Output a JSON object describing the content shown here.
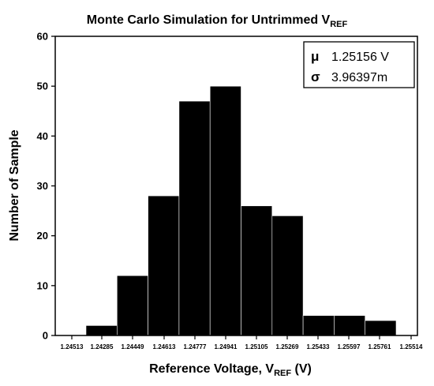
{
  "chart_data": {
    "type": "bar",
    "title": {
      "main": "Monte Carlo Simulation for Untrimmed V",
      "sub": "REF"
    },
    "xlabel": {
      "main": "Reference Voltage, V",
      "sub": "REF",
      "suffix": " (V)"
    },
    "ylabel": "Number of Sample",
    "ylim": [
      0,
      60
    ],
    "yticks": [
      "0",
      "10",
      "20",
      "30",
      "40",
      "50",
      "60"
    ],
    "xticks": [
      "1.24513",
      "1.24285",
      "1.24449",
      "1.24613",
      "1.24777",
      "1.24941",
      "1.25105",
      "1.25269",
      "1.25433",
      "1.25597",
      "1.25761",
      "1.25514"
    ],
    "bins": [
      {
        "from": "1.24285",
        "to": "1.24449",
        "value": 2
      },
      {
        "from": "1.24449",
        "to": "1.24613",
        "value": 12
      },
      {
        "from": "1.24613",
        "to": "1.24777",
        "value": 28
      },
      {
        "from": "1.24777",
        "to": "1.24941",
        "value": 47
      },
      {
        "from": "1.24941",
        "to": "1.25105",
        "value": 50
      },
      {
        "from": "1.25105",
        "to": "1.25269",
        "value": 26
      },
      {
        "from": "1.25269",
        "to": "1.25433",
        "value": 24
      },
      {
        "from": "1.25433",
        "to": "1.25597",
        "value": 4
      },
      {
        "from": "1.25597",
        "to": "1.25761",
        "value": 4
      },
      {
        "from": "1.25761",
        "to": "1.25925",
        "value": 3
      }
    ],
    "bar_color": "#000000",
    "stats": {
      "mean_symbol": "μ",
      "mean_value": "1.25156 V",
      "sigma_symbol": "σ",
      "sigma_value": "3.96397m"
    }
  }
}
